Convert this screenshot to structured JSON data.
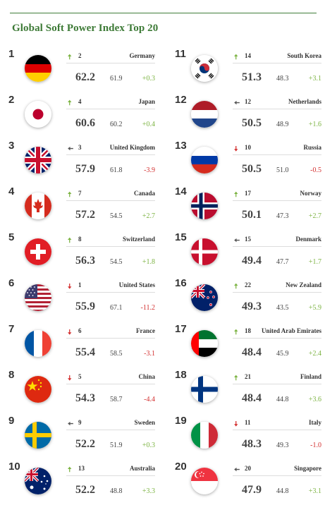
{
  "title": "Global Soft Power Index Top 20",
  "colors": {
    "accent": "#3d7a36",
    "up": "#7cb342",
    "down": "#d32f2f",
    "same": "#555555"
  },
  "entries": [
    {
      "rank": "1",
      "flag": "germany-flag",
      "trend": "up",
      "arrow": "🠅",
      "prev_rank": "2",
      "country": "Germany",
      "score": "62.2",
      "score_prev": "61.9",
      "delta": "+0.3"
    },
    {
      "rank": "2",
      "flag": "japan-flag",
      "trend": "up",
      "arrow": "🠅",
      "prev_rank": "4",
      "country": "Japan",
      "score": "60.6",
      "score_prev": "60.2",
      "delta": "+0.4"
    },
    {
      "rank": "3",
      "flag": "uk-flag",
      "trend": "same",
      "arrow": "🠄",
      "prev_rank": "3",
      "country": "United Kingdom",
      "score": "57.9",
      "score_prev": "61.8",
      "delta": "-3.9"
    },
    {
      "rank": "4",
      "flag": "canada-flag",
      "trend": "up",
      "arrow": "🠅",
      "prev_rank": "7",
      "country": "Canada",
      "score": "57.2",
      "score_prev": "54.5",
      "delta": "+2.7"
    },
    {
      "rank": "5",
      "flag": "switzerland-flag",
      "trend": "up",
      "arrow": "🠅",
      "prev_rank": "8",
      "country": "Switzerland",
      "score": "56.3",
      "score_prev": "54.5",
      "delta": "+1.8"
    },
    {
      "rank": "6",
      "flag": "usa-flag",
      "trend": "down",
      "arrow": "🠇",
      "prev_rank": "1",
      "country": "United States",
      "score": "55.9",
      "score_prev": "67.1",
      "delta": "-11.2"
    },
    {
      "rank": "7",
      "flag": "france-flag",
      "trend": "down",
      "arrow": "🠇",
      "prev_rank": "6",
      "country": "France",
      "score": "55.4",
      "score_prev": "58.5",
      "delta": "-3.1"
    },
    {
      "rank": "8",
      "flag": "china-flag",
      "trend": "down",
      "arrow": "🠇",
      "prev_rank": "5",
      "country": "China",
      "score": "54.3",
      "score_prev": "58.7",
      "delta": "-4.4"
    },
    {
      "rank": "9",
      "flag": "sweden-flag",
      "trend": "same",
      "arrow": "🠄",
      "prev_rank": "9",
      "country": "Sweden",
      "score": "52.2",
      "score_prev": "51.9",
      "delta": "+0.3"
    },
    {
      "rank": "10",
      "flag": "australia-flag",
      "trend": "up",
      "arrow": "🠅",
      "prev_rank": "13",
      "country": "Australia",
      "score": "52.2",
      "score_prev": "48.8",
      "delta": "+3.3"
    },
    {
      "rank": "11",
      "flag": "south-korea-flag",
      "trend": "up",
      "arrow": "🠅",
      "prev_rank": "14",
      "country": "South Korea",
      "score": "51.3",
      "score_prev": "48.3",
      "delta": "+3.1"
    },
    {
      "rank": "12",
      "flag": "netherlands-flag",
      "trend": "same",
      "arrow": "🠄",
      "prev_rank": "12",
      "country": "Netherlands",
      "score": "50.5",
      "score_prev": "48.9",
      "delta": "+1.6"
    },
    {
      "rank": "13",
      "flag": "russia-flag",
      "trend": "down",
      "arrow": "🠇",
      "prev_rank": "10",
      "country": "Russia",
      "score": "50.5",
      "score_prev": "51.0",
      "delta": "-0.5"
    },
    {
      "rank": "14",
      "flag": "norway-flag",
      "trend": "up",
      "arrow": "🠅",
      "prev_rank": "17",
      "country": "Norway",
      "score": "50.1",
      "score_prev": "47.3",
      "delta": "+2.7"
    },
    {
      "rank": "15",
      "flag": "denmark-flag",
      "trend": "same",
      "arrow": "🠄",
      "prev_rank": "15",
      "country": "Denmark",
      "score": "49.4",
      "score_prev": "47.7",
      "delta": "+1.7"
    },
    {
      "rank": "16",
      "flag": "new-zealand-flag",
      "trend": "up",
      "arrow": "🠅",
      "prev_rank": "22",
      "country": "New Zealand",
      "score": "49.3",
      "score_prev": "43.5",
      "delta": "+5.9"
    },
    {
      "rank": "17",
      "flag": "uae-flag",
      "trend": "up",
      "arrow": "🠅",
      "prev_rank": "18",
      "country": "United Arab Emirates",
      "score": "48.4",
      "score_prev": "45.9",
      "delta": "+2.4"
    },
    {
      "rank": "18",
      "flag": "finland-flag",
      "trend": "up",
      "arrow": "🠅",
      "prev_rank": "21",
      "country": "Finland",
      "score": "48.4",
      "score_prev": "44.8",
      "delta": "+3.6"
    },
    {
      "rank": "19",
      "flag": "italy-flag",
      "trend": "down",
      "arrow": "🠇",
      "prev_rank": "11",
      "country": "Italy",
      "score": "48.3",
      "score_prev": "49.3",
      "delta": "-1.0"
    },
    {
      "rank": "20",
      "flag": "singapore-flag",
      "trend": "same",
      "arrow": "🠄",
      "prev_rank": "20",
      "country": "Singapore",
      "score": "47.9",
      "score_prev": "44.8",
      "delta": "+3.1"
    }
  ]
}
